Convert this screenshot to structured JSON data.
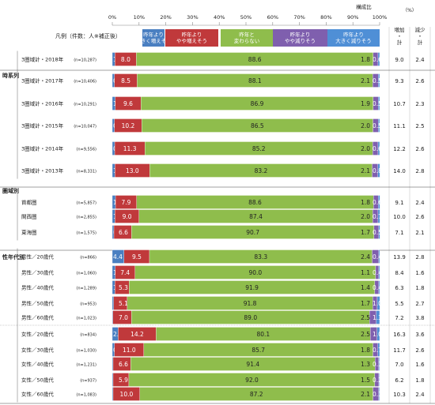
{
  "chart_data": {
    "type": "bar",
    "stacked": true,
    "orientation": "horizontal",
    "unit_label": "構成比",
    "axis_ticks": [
      "0%",
      "10%",
      "20%",
      "30%",
      "40%",
      "50%",
      "60%",
      "70%",
      "80%",
      "90%",
      "100%"
    ],
    "xlim": [
      0,
      100
    ],
    "legend_caption": "凡例（件数：人※補正後）",
    "series": [
      {
        "name": "昨年より\n大きく増えそう",
        "color": "#4a7fc1"
      },
      {
        "name": "昨年より\nやや増えそう",
        "color": "#c0393b"
      },
      {
        "name": "昨年と\n変わらない",
        "color": "#8fbd4c"
      },
      {
        "name": "昨年より\nやや減りそう",
        "color": "#7f5fae"
      },
      {
        "name": "昨年より\n大きく減りそう",
        "color": "#4f8fd6"
      }
    ],
    "extra_columns": {
      "header_pct": "（%）",
      "col1": "増加・計",
      "col2": "減少・計"
    },
    "groups": [
      {
        "label": "時系列",
        "rows": [
          {
            "label": "3圏域計・2018年",
            "n": "(n=10,287)",
            "values": [
              1.0,
              8.0,
              88.6,
              1.8,
              0.6
            ],
            "inc": "9.0",
            "dec": "2.4"
          },
          {
            "label": "3圏域計・2017年",
            "n": "(n=10,406)",
            "values": [
              0.8,
              8.5,
              88.1,
              2.1,
              0.5
            ],
            "inc": "9.3",
            "dec": "2.6"
          },
          {
            "label": "3圏域計・2016年",
            "n": "(n=10,291)",
            "values": [
              1.1,
              9.6,
              86.9,
              1.9,
              0.5
            ],
            "inc": "10.7",
            "dec": "2.3"
          },
          {
            "label": "3圏域計・2015年",
            "n": "(n=10,047)",
            "values": [
              0.8,
              10.2,
              86.5,
              2.0,
              0.5
            ],
            "inc": "11.1",
            "dec": "2.5"
          },
          {
            "label": "3圏域計・2014年",
            "n": "(n=9,556)",
            "values": [
              0.9,
              11.3,
              85.2,
              2.0,
              0.6
            ],
            "inc": "12.2",
            "dec": "2.6"
          },
          {
            "label": "3圏域計・2013年",
            "n": "(n=8,331)",
            "values": [
              1.0,
              13.0,
              83.2,
              2.1,
              0.8
            ],
            "inc": "14.0",
            "dec": "2.8"
          }
        ]
      },
      {
        "label": "圏域別",
        "rows": [
          {
            "label": "首都圏",
            "n": "(n=5,857)",
            "values": [
              1.2,
              7.9,
              88.6,
              1.8,
              0.6
            ],
            "inc": "9.1",
            "dec": "2.4"
          },
          {
            "label": "関西圏",
            "n": "(n=2,855)",
            "values": [
              1.0,
              9.0,
              87.4,
              2.0,
              0.7
            ],
            "inc": "10.0",
            "dec": "2.6"
          },
          {
            "label": "東海圏",
            "n": "(n=1,575)",
            "values": [
              0.6,
              6.6,
              90.7,
              1.7,
              0.5
            ],
            "inc": "7.1",
            "dec": "2.1"
          }
        ]
      },
      {
        "label": "性年代別",
        "rows": [
          {
            "label": "男性／20歳代",
            "n": "(n=866)",
            "values": [
              4.4,
              9.5,
              83.3,
              2.4,
              0.4
            ],
            "inc": "13.9",
            "dec": "2.8"
          },
          {
            "label": "男性／30歳代",
            "n": "(n=1,060)",
            "values": [
              1.1,
              7.4,
              90.0,
              1.1,
              0.4
            ],
            "inc": "8.4",
            "dec": "1.6"
          },
          {
            "label": "男性／40歳代",
            "n": "(n=1,289)",
            "values": [
              1.0,
              5.3,
              91.9,
              1.4,
              0.4
            ],
            "inc": "6.3",
            "dec": "1.8"
          },
          {
            "label": "男性／50歳代",
            "n": "(n=953)",
            "values": [
              0.5,
              5.1,
              91.8,
              1.7,
              1.0
            ],
            "inc": "5.5",
            "dec": "2.7"
          },
          {
            "label": "男性／60歳代",
            "n": "(n=1,023)",
            "values": [
              0.2,
              7.0,
              89.0,
              2.5,
              1.3
            ],
            "inc": "7.2",
            "dec": "3.8"
          },
          {
            "label": "女性／20歳代",
            "n": "(n=834)",
            "values": [
              2.2,
              14.2,
              80.1,
              2.5,
              1.0
            ],
            "inc": "16.3",
            "dec": "3.6"
          },
          {
            "label": "女性／30歳代",
            "n": "(n=1,030)",
            "values": [
              0.8,
              11.0,
              85.7,
              1.8,
              0.7
            ],
            "inc": "11.7",
            "dec": "2.6"
          },
          {
            "label": "女性／40歳代",
            "n": "(n=1,231)",
            "values": [
              0.3,
              6.6,
              91.4,
              1.3,
              0.3
            ],
            "inc": "7.0",
            "dec": "1.6"
          },
          {
            "label": "女性／50歳代",
            "n": "(n=937)",
            "values": [
              0.3,
              5.9,
              92.0,
              1.5,
              0.2
            ],
            "inc": "6.2",
            "dec": "1.8"
          },
          {
            "label": "女性／60歳代",
            "n": "(n=1,083)",
            "values": [
              0.3,
              10.0,
              87.2,
              2.1,
              0.3
            ],
            "inc": "10.3",
            "dec": "2.4"
          }
        ]
      }
    ]
  }
}
